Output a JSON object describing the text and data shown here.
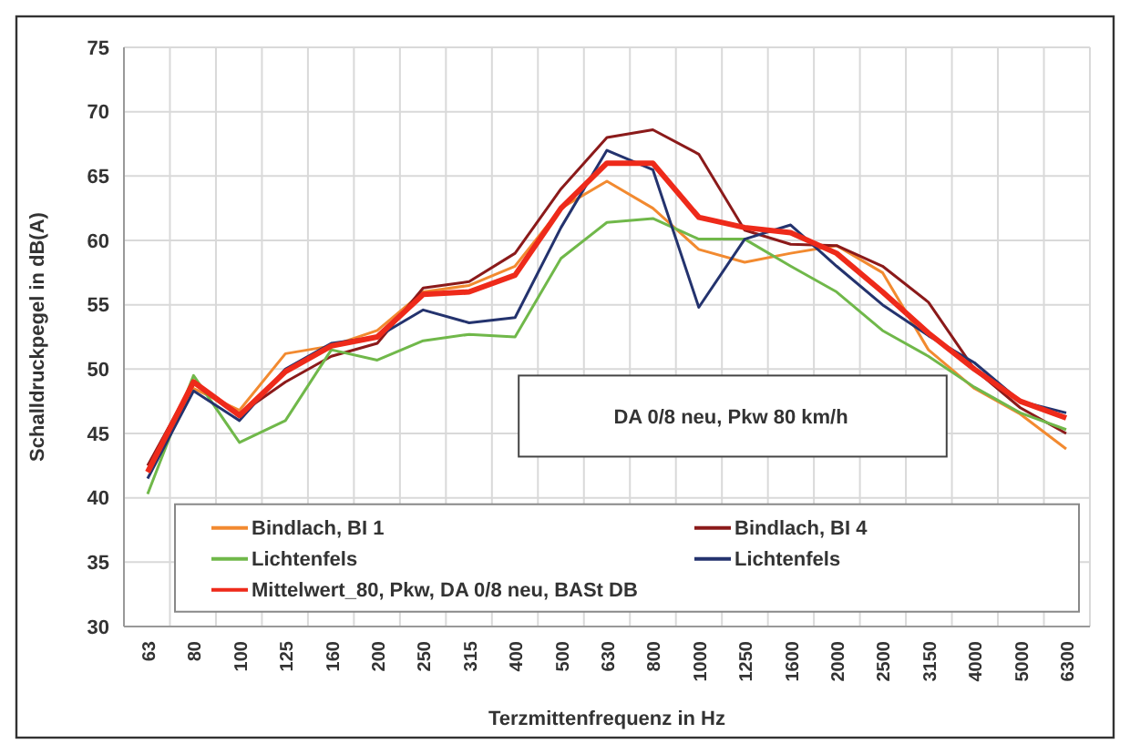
{
  "chart_data": {
    "type": "line",
    "xlabel": "Terzmittenfrequenz in Hz",
    "ylabel": "Schalldruckpegel in dB(A)",
    "categories": [
      "63",
      "80",
      "100",
      "125",
      "160",
      "200",
      "250",
      "315",
      "400",
      "500",
      "630",
      "800",
      "1000",
      "1250",
      "1600",
      "2000",
      "2500",
      "3150",
      "4000",
      "5000",
      "6300"
    ],
    "series": [
      {
        "name": "Bindlach, BI 1",
        "color": "#f28a30",
        "values": [
          42,
          48.5,
          46.8,
          51.2,
          51.8,
          53,
          56,
          56.5,
          58,
          62.5,
          64.6,
          62.5,
          59.3,
          58.3,
          59,
          59.6,
          57.5,
          51.5,
          48.5,
          46.5,
          43.8
        ]
      },
      {
        "name": "Bindlach, BI 4",
        "color": "#8b1a1a",
        "values": [
          42.5,
          49,
          46.5,
          49,
          51,
          52,
          56.3,
          56.8,
          59,
          64,
          68,
          68.6,
          66.7,
          60.8,
          59.7,
          59.6,
          58,
          55.2,
          50,
          47,
          45
        ]
      },
      {
        "name": "Lichtenfels",
        "color": "#70b84a",
        "values": [
          40.3,
          49.5,
          44.3,
          46,
          51.5,
          50.7,
          52.2,
          52.7,
          52.5,
          58.6,
          61.4,
          61.7,
          60.1,
          60.1,
          58,
          56,
          53,
          51,
          48.6,
          46.6,
          45.3
        ]
      },
      {
        "name": "Lichtenfels",
        "color": "#24336e",
        "values": [
          41.5,
          48.3,
          46,
          50,
          52,
          52.5,
          54.6,
          53.6,
          54,
          61,
          67,
          65.5,
          54.8,
          60.1,
          61.2,
          58,
          55,
          52.6,
          50.5,
          47.5,
          46.6
        ]
      },
      {
        "name": "Mittelwert_80, Pkw, DA 0/8 neu, BASt DB",
        "color": "#ee2a1a",
        "values": [
          42,
          49,
          46.4,
          49.8,
          51.8,
          52.5,
          55.8,
          56,
          57.3,
          62.5,
          66,
          66,
          61.8,
          61,
          60.6,
          59,
          56,
          52.8,
          50,
          47.5,
          46.2
        ]
      }
    ],
    "ylim": [
      30,
      75
    ],
    "yticks": [
      30,
      35,
      40,
      45,
      50,
      55,
      60,
      65,
      70,
      75
    ],
    "grid": true,
    "legend": "bottom",
    "line_style": "solid",
    "annotations": [
      "DA 0/8 neu, Pkw 80 km/h"
    ]
  }
}
